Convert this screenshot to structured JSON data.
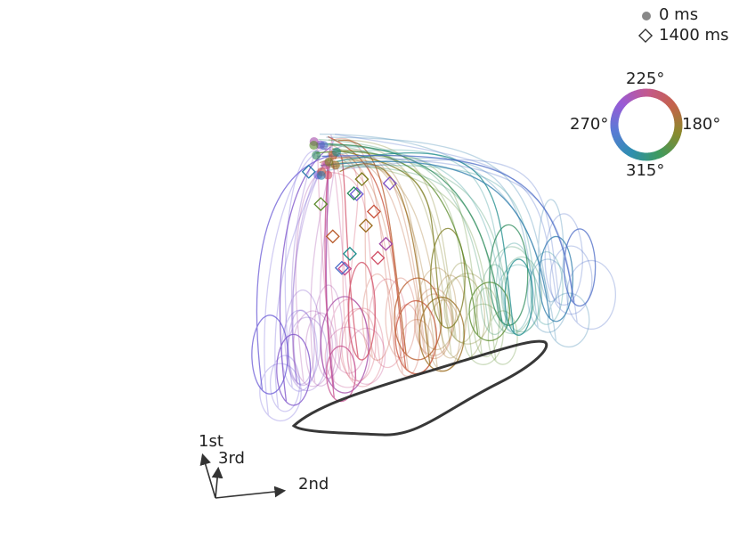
{
  "chart_data": {
    "type": "scatter",
    "title": "",
    "axes": {
      "first": "1st",
      "second": "2nd",
      "third": "3rd"
    },
    "legend": {
      "placement": "top-right",
      "items": [
        {
          "marker": "filled-circle",
          "label": "0 ms"
        },
        {
          "marker": "open-diamond",
          "label": "1400 ms"
        }
      ]
    },
    "color_wheel": {
      "placement": "top-right",
      "labels": {
        "top": "225°",
        "left": "270°",
        "right": "180°",
        "bottom": "315°"
      },
      "hue_stops": [
        "#c4598c",
        "#c4624a",
        "#8a8a2c",
        "#3e9a5e",
        "#2e8fb0",
        "#5a7ad6",
        "#9a5ad6",
        "#c4598c"
      ]
    },
    "series_colors": [
      "#6a5ad6",
      "#7a4ec8",
      "#a24aa8",
      "#c44a8c",
      "#d04a62",
      "#c8503a",
      "#b85a2a",
      "#9a6a1c",
      "#7a7a1c",
      "#5a8a2a",
      "#2a8a5a",
      "#1a8a8a",
      "#2a7aaa",
      "#4a6ac6"
    ],
    "mean_trajectory_color": "#222222",
    "notes": []
  }
}
